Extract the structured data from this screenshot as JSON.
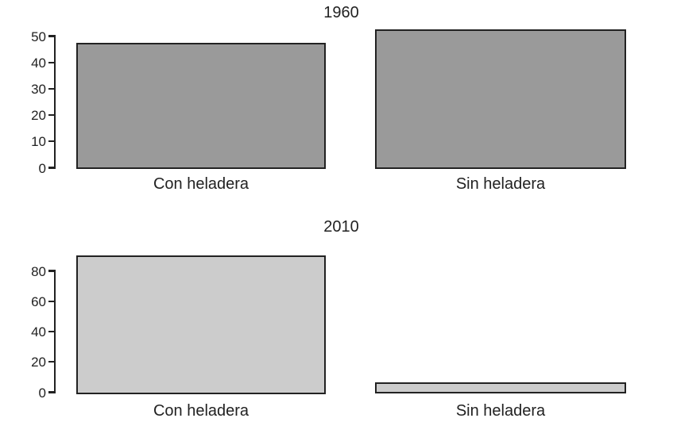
{
  "figure_title": "",
  "colors": {
    "background": "#ffffff",
    "axis": "#222222",
    "text": "#222222",
    "bar_fill_1960": "#9a9a9a",
    "bar_fill_2010": "#cccccc",
    "bar_border": "#222222"
  },
  "chart_data": [
    {
      "type": "bar",
      "title": "1960",
      "categories": [
        "Con heladera",
        "Sin heladera"
      ],
      "values": [
        47.5,
        52.5
      ],
      "xlabel": "",
      "ylabel": "",
      "ylim": [
        0,
        50
      ],
      "yticks": [
        0,
        10,
        20,
        30,
        40,
        50
      ],
      "grid": false,
      "legend": false,
      "bar_color": "#9a9a9a",
      "bar_border_color": "#222222",
      "note": "bars drawn beyond axis maximum when value exceeds 50"
    },
    {
      "type": "bar",
      "title": "2010",
      "categories": [
        "Con heladera",
        "Sin heladera"
      ],
      "values": [
        90,
        6.5
      ],
      "xlabel": "",
      "ylabel": "",
      "ylim": [
        0,
        80
      ],
      "yticks": [
        0,
        20,
        40,
        60,
        80
      ],
      "grid": false,
      "legend": false,
      "bar_color": "#cccccc",
      "bar_border_color": "#222222",
      "note": "bars drawn beyond axis maximum when value exceeds 80"
    }
  ]
}
